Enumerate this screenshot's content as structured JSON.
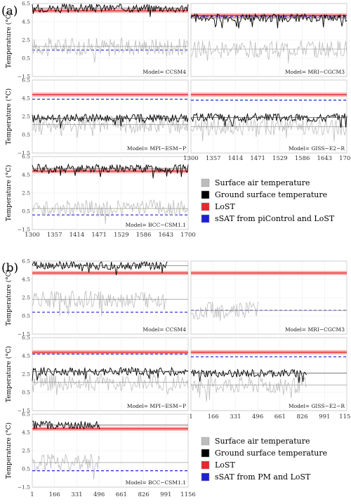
{
  "chart_data": [
    {
      "type": "line",
      "panel_label": "(a)",
      "ylabel": "Temperature (°C)",
      "yticks": [
        "−1.5",
        "0.5",
        "2.5",
        "4.5",
        "6.5"
      ],
      "ylim": [
        -1.5,
        6.5
      ],
      "xlim": [
        1300,
        1700
      ],
      "xticks": [
        "1300",
        "1357",
        "1414",
        "1471",
        "1529",
        "1586",
        "1643",
        "1700"
      ],
      "legend": [
        {
          "label": "Surface air temperature",
          "color": "#bdbdbd"
        },
        {
          "label": "Ground surface temperature",
          "color": "#000000"
        },
        {
          "label": "LoST",
          "color": "#e8282b"
        },
        {
          "label": "sSAT from piControl and LoST",
          "color": "#1f1fd6"
        }
      ],
      "panels": [
        {
          "model": "Model= CCSM4",
          "lost": 5.7,
          "ssat": 1.4,
          "gst_mean": 6.0,
          "sat_mean": 1.8,
          "x_end": 1700,
          "col": 0,
          "row": 0
        },
        {
          "model": "Model= MRI−CGCM3",
          "lost": 5.2,
          "ssat": 5.1,
          "gst_mean": 4.9,
          "sat_mean": 1.5,
          "x_end": 1700,
          "col": 1,
          "row": 0
        },
        {
          "model": "Model= MPI−ESM−P",
          "lost": 4.9,
          "ssat": 4.4,
          "gst_mean": 2.3,
          "sat_mean": 1.6,
          "x_end": 1700,
          "col": 0,
          "row": 1
        },
        {
          "model": "Model= GISS−E2−R",
          "lost": 4.9,
          "ssat": 4.3,
          "gst_mean": 2.4,
          "sat_mean": 1.4,
          "x_end": 1700,
          "col": 1,
          "row": 1
        },
        {
          "model": "Model= BCC−CSM1.1",
          "lost": 4.9,
          "ssat": 0.1,
          "gst_mean": 5.2,
          "sat_mean": 0.8,
          "x_end": 1700,
          "col": 0,
          "row": 2
        }
      ]
    },
    {
      "type": "line",
      "panel_label": "(b)",
      "ylabel": "Temperature (°C)",
      "yticks": [
        "−1.5",
        "0.5",
        "2.5",
        "4.5",
        "6.5"
      ],
      "ylim": [
        -1.5,
        6.5
      ],
      "xlim": [
        1,
        1156
      ],
      "xticks": [
        "1",
        "166",
        "331",
        "496",
        "661",
        "826",
        "991",
        "1156"
      ],
      "legend": [
        {
          "label": "Surface air temperature",
          "color": "#bdbdbd"
        },
        {
          "label": "Ground surface temperature",
          "color": "#000000"
        },
        {
          "label": "LoST",
          "color": "#e8282b"
        },
        {
          "label": "sSAT from PM and LoST",
          "color": "#1f1fd6"
        }
      ],
      "panels": [
        {
          "model": "Model= CCSM4",
          "lost": 5.2,
          "ssat": 0.9,
          "gst_mean": 6.0,
          "sat_mean": 2.3,
          "x_end": 1000,
          "col": 0,
          "row": 0
        },
        {
          "model": "Model= MRI−CGCM3",
          "lost": 5.2,
          "ssat": 1.1,
          "gst_mean": null,
          "sat_mean": 1.1,
          "x_end": 500,
          "col": 1,
          "row": 0
        },
        {
          "model": "Model= MPI−ESM−P",
          "lost": 4.9,
          "ssat": 4.7,
          "gst_mean": 2.8,
          "sat_mean": 1.6,
          "x_end": 1156,
          "col": 0,
          "row": 1
        },
        {
          "model": "Model= GISS−E2−R",
          "lost": 4.9,
          "ssat": 4.4,
          "gst_mean": 2.6,
          "sat_mean": 1.3,
          "x_end": 860,
          "col": 1,
          "row": 1
        },
        {
          "model": "Model= BCC−CSM1.1",
          "lost": 4.9,
          "ssat": 0.3,
          "gst_mean": 5.3,
          "sat_mean": 1.2,
          "x_end": 500,
          "col": 0,
          "row": 2
        }
      ]
    }
  ]
}
